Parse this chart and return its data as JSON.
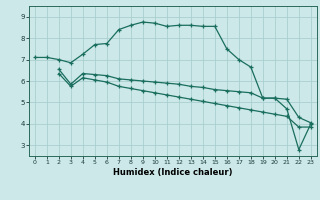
{
  "title": "",
  "xlabel": "Humidex (Indice chaleur)",
  "bg_color": "#cce8e8",
  "grid_color": "#aacfcf",
  "line_color": "#1a6e5e",
  "xlim": [
    -0.5,
    23.5
  ],
  "ylim": [
    2.5,
    9.5
  ],
  "xticks": [
    0,
    1,
    2,
    3,
    4,
    5,
    6,
    7,
    8,
    9,
    10,
    11,
    12,
    13,
    14,
    15,
    16,
    17,
    18,
    19,
    20,
    21,
    22,
    23
  ],
  "yticks": [
    3,
    4,
    5,
    6,
    7,
    8,
    9
  ],
  "line1_x": [
    0,
    1,
    2,
    3,
    4,
    5,
    6,
    7,
    8,
    9,
    10,
    11,
    12,
    13,
    14,
    15,
    16,
    17,
    18,
    19,
    20,
    21,
    22,
    23
  ],
  "line1_y": [
    7.1,
    7.1,
    7.0,
    6.85,
    7.25,
    7.7,
    7.75,
    8.4,
    8.6,
    8.75,
    8.7,
    8.55,
    8.6,
    8.6,
    8.55,
    8.55,
    7.5,
    7.0,
    6.65,
    5.2,
    5.2,
    4.7,
    2.8,
    4.0
  ],
  "line2_x": [
    2,
    3,
    4,
    5,
    6,
    7,
    8,
    9,
    10,
    11,
    12,
    13,
    14,
    15,
    16,
    17,
    18,
    19,
    20,
    21,
    22,
    23
  ],
  "line2_y": [
    6.55,
    5.85,
    6.35,
    6.3,
    6.25,
    6.1,
    6.05,
    6.0,
    5.95,
    5.9,
    5.85,
    5.75,
    5.7,
    5.6,
    5.55,
    5.5,
    5.45,
    5.2,
    5.2,
    5.15,
    4.3,
    4.05
  ],
  "line3_x": [
    2,
    3,
    4,
    5,
    6,
    7,
    8,
    9,
    10,
    11,
    12,
    13,
    14,
    15,
    16,
    17,
    18,
    19,
    20,
    21,
    22,
    23
  ],
  "line3_y": [
    6.35,
    5.75,
    6.15,
    6.05,
    5.95,
    5.75,
    5.65,
    5.55,
    5.45,
    5.35,
    5.25,
    5.15,
    5.05,
    4.95,
    4.85,
    4.75,
    4.65,
    4.55,
    4.45,
    4.35,
    3.85,
    3.85
  ]
}
